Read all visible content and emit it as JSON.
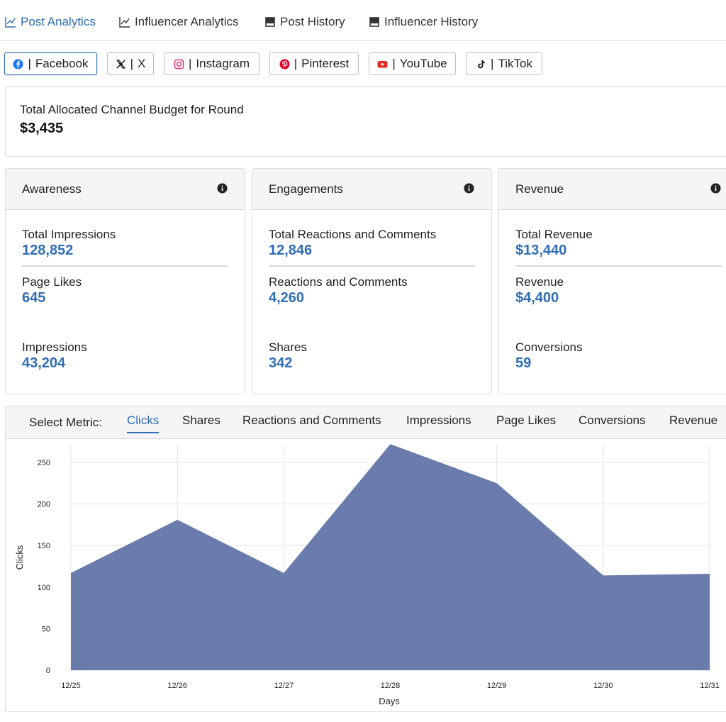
{
  "nav": {
    "tabs": [
      {
        "label": "Post Analytics",
        "icon": "line-chart-icon",
        "active": true
      },
      {
        "label": "Influencer Analytics",
        "icon": "line-chart-icon",
        "active": false
      },
      {
        "label": "Post History",
        "icon": "table-icon",
        "active": false
      },
      {
        "label": "Influencer History",
        "icon": "table-icon",
        "active": false
      }
    ]
  },
  "channels": [
    {
      "label": "Facebook",
      "icon": "facebook-icon",
      "active": true
    },
    {
      "label": "X",
      "icon": "x-icon",
      "active": false
    },
    {
      "label": "Instagram",
      "icon": "instagram-icon",
      "active": false
    },
    {
      "label": "Pinterest",
      "icon": "pinterest-icon",
      "active": false
    },
    {
      "label": "YouTube",
      "icon": "youtube-icon",
      "active": false
    },
    {
      "label": "TikTok",
      "icon": "tiktok-icon",
      "active": false
    }
  ],
  "separator": "|",
  "budget": {
    "label": "Total Allocated Channel Budget for Round",
    "value": "$3,435"
  },
  "cards": [
    {
      "title": "Awareness",
      "total_label": "Total Impressions",
      "total_value": "128,852",
      "m1_label": "Page Likes",
      "m1_value": "645",
      "m2_label": "Impressions",
      "m2_value": "43,204"
    },
    {
      "title": "Engagements",
      "total_label": "Total Reactions and Comments",
      "total_value": "12,846",
      "m1_label": "Reactions and Comments",
      "m1_value": "4,260",
      "m2_label": "Shares",
      "m2_value": "342"
    },
    {
      "title": "Revenue",
      "total_label": "Total Revenue",
      "total_value": "$13,440",
      "m1_label": "Revenue",
      "m1_value": "$4,400",
      "m2_label": "Conversions",
      "m2_value": "59"
    }
  ],
  "metric_selector": {
    "label": "Select Metric:",
    "options": [
      "Clicks",
      "Shares",
      "Reactions and Comments",
      "Impressions",
      "Page Likes",
      "Conversions",
      "Revenue"
    ],
    "selected": "Clicks"
  },
  "colors": {
    "accent": "#2f6db5",
    "area_fill": "#6a7cab",
    "facebook": "#1877f2",
    "instagram": "#d6307a",
    "pinterest": "#e60023",
    "youtube": "#e52d27"
  },
  "chart_data": {
    "type": "area",
    "x": [
      "12/25",
      "12/26",
      "12/27",
      "12/28",
      "12/29",
      "12/30",
      "12/31"
    ],
    "series": [
      {
        "values": [
          117,
          181,
          117,
          272,
          225,
          114,
          116
        ]
      }
    ],
    "xlabel": "Days",
    "ylabel": "Clicks",
    "ylim": [
      0,
      272
    ],
    "yticks": [
      0,
      50,
      100,
      150,
      200,
      250
    ],
    "grid": true
  }
}
